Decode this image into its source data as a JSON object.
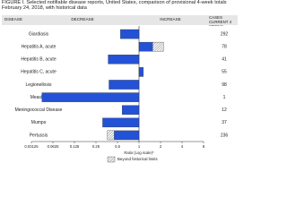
{
  "chart_data": {
    "type": "bar",
    "title": "FIGURE I. Selected notifiable disease reports, United States, comparison of provisional 4-week totals February 24, 2018, with historical data",
    "headers": {
      "disease": "DISEASE",
      "decrease": "DECREASE",
      "increase": "INCREASE",
      "cases": "CASES CURRENT 4 WEEKS"
    },
    "categories": [
      "Giardiasis",
      "Hepatitis A, acute",
      "Hepatitis B, acute",
      "Hepatitis C, acute",
      "Legionellosis",
      "Measles",
      "Meningococcal Disease",
      "Mumps",
      "Pertussis"
    ],
    "values": [
      0.55,
      2.2,
      0.37,
      1.15,
      0.38,
      0.044,
      0.58,
      0.31,
      0.36
    ],
    "historical_limits": [
      null,
      1.55,
      null,
      null,
      null,
      null,
      null,
      null,
      0.45
    ],
    "cases": [
      292,
      78,
      41,
      55,
      98,
      1,
      12,
      37,
      236
    ],
    "color": "#2452d6",
    "log_scale": true,
    "xlim": [
      0.03125,
      8
    ],
    "xticks": [
      0.03125,
      0.0625,
      0.125,
      0.25,
      0.5,
      1,
      2,
      4,
      8
    ],
    "xlabel": "Ratio (Log scale)*",
    "legend": "Beyond historical limits"
  }
}
